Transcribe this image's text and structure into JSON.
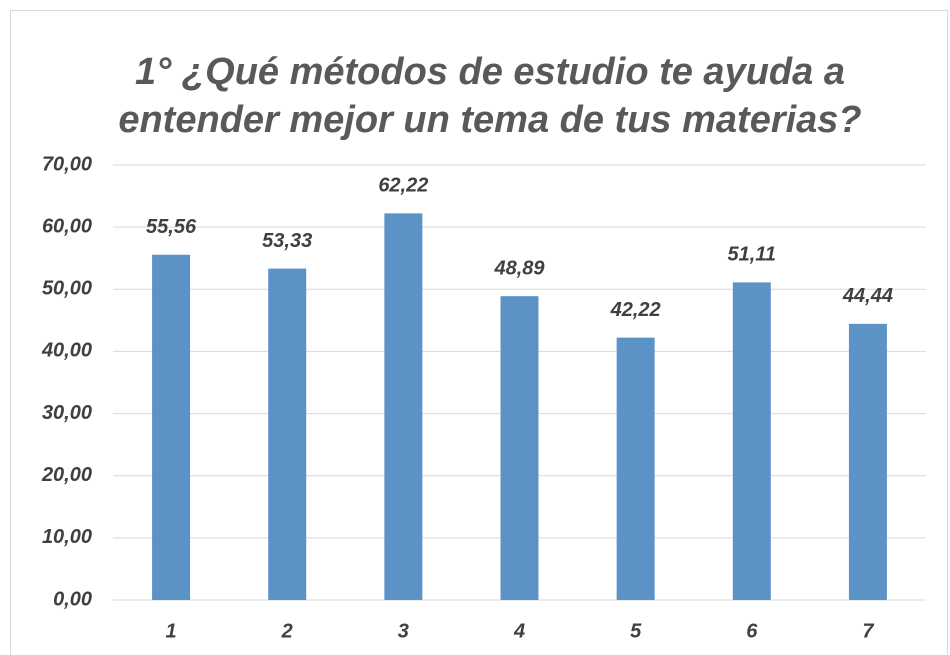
{
  "chart_data": {
    "type": "bar",
    "title": "1° ¿Qué métodos de estudio te ayuda a entender mejor un tema de tus materias?",
    "categories": [
      "1",
      "2",
      "3",
      "4",
      "5",
      "6",
      "7"
    ],
    "values": [
      55.56,
      53.33,
      62.22,
      48.89,
      42.22,
      51.11,
      44.44
    ],
    "value_labels": [
      "55,56",
      "53,33",
      "62,22",
      "48,89",
      "42,22",
      "51,11",
      "44,44"
    ],
    "color": "#5b93c7",
    "ylim": [
      0,
      70
    ],
    "yticks": [
      {
        "value": 0,
        "label": "0,00"
      },
      {
        "value": 10,
        "label": "10,00"
      },
      {
        "value": 20,
        "label": "20,00"
      },
      {
        "value": 30,
        "label": "30,00"
      },
      {
        "value": 40,
        "label": "40,00"
      },
      {
        "value": 50,
        "label": "50,00"
      },
      {
        "value": 60,
        "label": "60,00"
      },
      {
        "value": 70,
        "label": "70,00"
      }
    ],
    "grid": true
  }
}
